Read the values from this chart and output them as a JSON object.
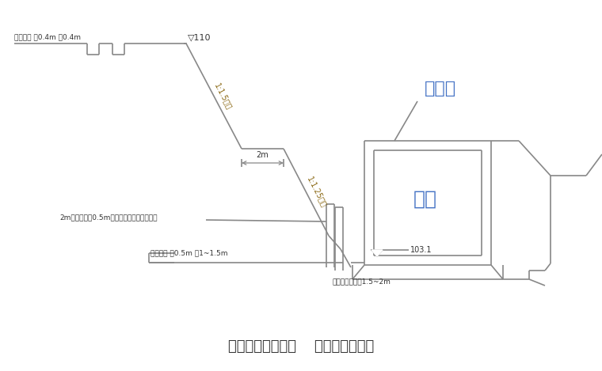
{
  "bg_color": "#ffffff",
  "line_color": "#888888",
  "text_color": "#333333",
  "blue_text": "#4472c4",
  "brown_text": "#8B6914",
  "title": "需要时增加松木桩    边坡加固示意图",
  "title_fontsize": 13,
  "label_yinshui": "引水渠",
  "label_jikeng": "基坑",
  "label_103": "103.1",
  "label_2m": "2m",
  "label_paishui_top": "排水明沟 深0.4m 宽0.4m",
  "label_paishui_bot": "排水明沟 深0.5m 宽1~1.5m",
  "label_mud": "2m松木桩间距0.5m插入边坡上用竹篱笆围拦",
  "label_bangzi": "邦手架搭设宽度1.5~2m",
  "label_nabao": "▽110",
  "slope1": "1:1.5坡坡",
  "slope2": "1:1.25坡坡"
}
